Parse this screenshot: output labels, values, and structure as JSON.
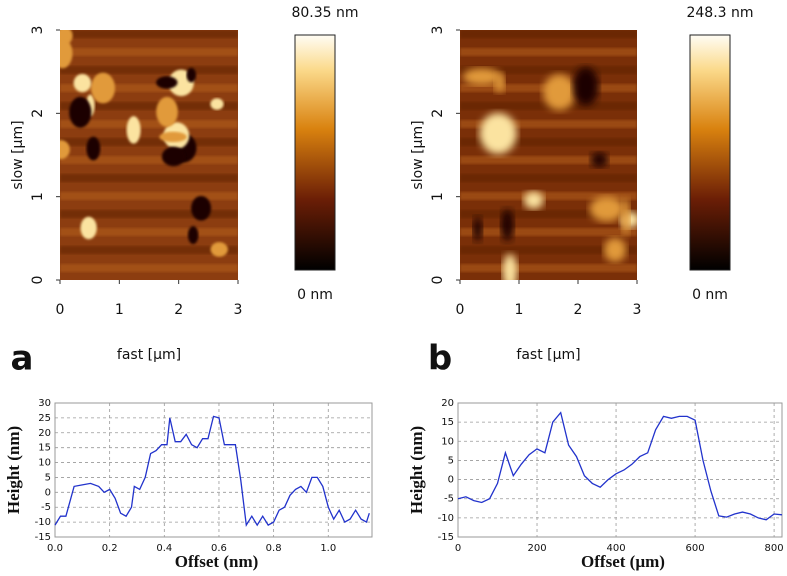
{
  "chart_data": [
    {
      "type": "heatmap",
      "panel_label": "a",
      "xlabel": "fast [µm]",
      "ylabel": "slow [µm]",
      "xlim": [
        0,
        3
      ],
      "ylim": [
        0,
        3
      ],
      "xticks": [
        0,
        1,
        2,
        3
      ],
      "yticks": [
        0,
        1,
        2,
        3
      ],
      "colorbar_max_label": "80.35 nm",
      "colorbar_min_label": "0 nm"
    },
    {
      "type": "heatmap",
      "panel_label": "b",
      "xlabel": "fast [µm]",
      "ylabel": "slow [µm]",
      "xlim": [
        0,
        3
      ],
      "ylim": [
        0,
        3
      ],
      "xticks": [
        0,
        1,
        2,
        3
      ],
      "yticks": [
        0,
        1,
        2,
        3
      ],
      "colorbar_max_label": "248.3 nm",
      "colorbar_min_label": "0 nm"
    },
    {
      "type": "line",
      "xlabel": "Offset (nm)",
      "ylabel": "Height (nm)",
      "grid": true,
      "color": "#2233cc",
      "xlim": [
        0,
        1.16
      ],
      "ylim": [
        -15,
        30
      ],
      "xticks": [
        {
          "value": 0,
          "label": "0.0"
        },
        0.2,
        0.4,
        0.6,
        0.8,
        {
          "value": 1,
          "label": "1.0"
        }
      ],
      "yticks": [
        -15,
        -10,
        -5,
        0,
        5,
        10,
        15,
        20,
        25,
        30
      ],
      "x": [
        0,
        0.02,
        0.04,
        0.07,
        0.1,
        0.13,
        0.16,
        0.18,
        0.2,
        0.22,
        0.24,
        0.26,
        0.28,
        0.29,
        0.31,
        0.33,
        0.35,
        0.37,
        0.39,
        0.41,
        0.42,
        0.44,
        0.46,
        0.48,
        0.5,
        0.52,
        0.54,
        0.56,
        0.58,
        0.6,
        0.62,
        0.66,
        0.68,
        0.7,
        0.72,
        0.74,
        0.76,
        0.78,
        0.8,
        0.82,
        0.84,
        0.86,
        0.88,
        0.9,
        0.92,
        0.94,
        0.96,
        0.98,
        1.0,
        1.02,
        1.04,
        1.06,
        1.08,
        1.1,
        1.12,
        1.14,
        1.15
      ],
      "values": [
        -11,
        -8,
        -8,
        2,
        2.5,
        3,
        2,
        0,
        1,
        -2,
        -7,
        -8,
        -5,
        2,
        1,
        5,
        13,
        14,
        16,
        16,
        25,
        17,
        17,
        19.5,
        16,
        15,
        18,
        18,
        25.5,
        25,
        16,
        16,
        4,
        -11,
        -8,
        -11,
        -8,
        -11,
        -10,
        -6,
        -5,
        -1,
        1,
        2,
        0,
        5,
        5,
        2,
        -5,
        -9,
        -6,
        -10,
        -9,
        -6,
        -9,
        -10,
        -7
      ]
    },
    {
      "type": "line",
      "xlabel": "Offset (µm)",
      "ylabel": "Height (nm)",
      "grid": true,
      "color": "#2233cc",
      "xlim": [
        0,
        820
      ],
      "ylim": [
        -15,
        20
      ],
      "xticks": [
        0,
        200,
        400,
        600,
        800
      ],
      "yticks": [
        -15,
        -10,
        -5,
        0,
        5,
        10,
        15,
        20
      ],
      "x": [
        0,
        20,
        40,
        60,
        80,
        100,
        120,
        140,
        160,
        180,
        200,
        220,
        240,
        260,
        280,
        300,
        320,
        340,
        360,
        380,
        400,
        420,
        440,
        460,
        480,
        500,
        520,
        540,
        560,
        580,
        600,
        620,
        640,
        660,
        680,
        700,
        720,
        740,
        760,
        780,
        800,
        820
      ],
      "values": [
        -5,
        -4.5,
        -5.5,
        -6,
        -5,
        -1,
        7,
        1,
        4,
        6.5,
        8,
        7,
        15,
        17.5,
        9,
        6,
        1,
        -1,
        -2,
        0,
        1.5,
        2.5,
        4,
        6,
        7,
        13,
        16.5,
        16,
        16.5,
        16.5,
        15.5,
        5,
        -3,
        -9.5,
        -9.8,
        -9,
        -8.5,
        -9,
        -10,
        -10.5,
        -9,
        -9.2
      ]
    }
  ]
}
